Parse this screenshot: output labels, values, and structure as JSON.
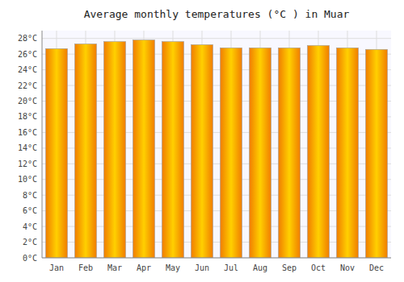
{
  "chart_data": {
    "type": "bar",
    "title": "Average monthly temperatures (°C ) in Muar",
    "categories": [
      "Jan",
      "Feb",
      "Mar",
      "Apr",
      "May",
      "Jun",
      "Jul",
      "Aug",
      "Sep",
      "Oct",
      "Nov",
      "Dec"
    ],
    "values": [
      26.7,
      27.3,
      27.6,
      27.8,
      27.6,
      27.2,
      26.8,
      26.8,
      26.8,
      27.1,
      26.8,
      26.6
    ],
    "color": "#FFD000",
    "ylim": [
      0,
      29
    ],
    "yticks": [
      {
        "value": 0,
        "label": "0°C"
      },
      {
        "value": 2,
        "label": "2°C"
      },
      {
        "value": 4,
        "label": "4°C"
      },
      {
        "value": 6,
        "label": "6°C"
      },
      {
        "value": 8,
        "label": "8°C"
      },
      {
        "value": 10,
        "label": "10°C"
      },
      {
        "value": 12,
        "label": "12°C"
      },
      {
        "value": 14,
        "label": "14°C"
      },
      {
        "value": 16,
        "label": "16°C"
      },
      {
        "value": 18,
        "label": "18°C"
      },
      {
        "value": 20,
        "label": "20°C"
      },
      {
        "value": 22,
        "label": "22°C"
      },
      {
        "value": 24,
        "label": "24°C"
      },
      {
        "value": 26,
        "label": "26°C"
      },
      {
        "value": 28,
        "label": "28°C"
      }
    ],
    "grid": true
  }
}
